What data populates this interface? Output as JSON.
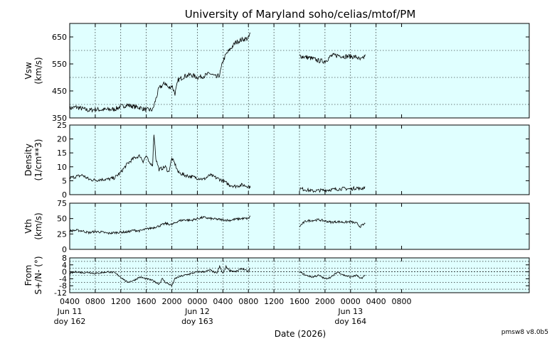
{
  "chart_data": {
    "type": "line",
    "title": "University of Maryland  soho/celias/mtof/PM",
    "xlabel": "Date (2026)",
    "footer": "pmsw8 v8.0b5",
    "x_range_hours": [
      4,
      76
    ],
    "x_ticks": [
      {
        "h": 4,
        "label": "0400",
        "sub": [
          "Jun 11",
          "doy 162"
        ]
      },
      {
        "h": 8,
        "label": "0800"
      },
      {
        "h": 12,
        "label": "1200"
      },
      {
        "h": 16,
        "label": "1600"
      },
      {
        "h": 20,
        "label": "2000"
      },
      {
        "h": 24,
        "label": "0000",
        "sub": [
          "Jun 12",
          "doy 163"
        ]
      },
      {
        "h": 28,
        "label": "0400"
      },
      {
        "h": 32,
        "label": "0800"
      },
      {
        "h": 36,
        "label": "1200"
      },
      {
        "h": 40,
        "label": "1600"
      },
      {
        "h": 44,
        "label": "2000"
      },
      {
        "h": 48,
        "label": "0000",
        "sub": [
          "Jun 13",
          "doy 164"
        ]
      },
      {
        "h": 52,
        "label": "0400"
      },
      {
        "h": 56,
        "label": "0800"
      }
    ],
    "panels": [
      {
        "key": "vsw",
        "ylabel": [
          "Vsw",
          "(km/s)"
        ],
        "ylim": [
          350,
          700
        ],
        "yticks": [
          350,
          450,
          550,
          650
        ],
        "hgrid": [
          400,
          500,
          600
        ],
        "segments": [
          [
            [
              4,
              385
            ],
            [
              5,
              390
            ],
            [
              6,
              384
            ],
            [
              7,
              378
            ],
            [
              8,
              382
            ],
            [
              9,
              380
            ],
            [
              10,
              381
            ],
            [
              11,
              382
            ],
            [
              12,
              392
            ],
            [
              13,
              398
            ],
            [
              14,
              392
            ],
            [
              15,
              388
            ],
            [
              16,
              380
            ],
            [
              17,
              380
            ],
            [
              17.5,
              420
            ],
            [
              18,
              460
            ],
            [
              19,
              480
            ],
            [
              19.5,
              460
            ],
            [
              20,
              470
            ],
            [
              20.5,
              440
            ],
            [
              21,
              490
            ],
            [
              22,
              505
            ],
            [
              23,
              510
            ],
            [
              24,
              500
            ],
            [
              25,
              505
            ],
            [
              26,
              515
            ],
            [
              27,
              500
            ],
            [
              27.5,
              510
            ],
            [
              28,
              560
            ],
            [
              28.5,
              585
            ],
            [
              29,
              600
            ],
            [
              30,
              630
            ],
            [
              31,
              640
            ],
            [
              32,
              645
            ],
            [
              32.3,
              665
            ]
          ],
          [
            [
              40,
              580
            ],
            [
              41,
              575
            ],
            [
              42,
              570
            ],
            [
              43,
              562
            ],
            [
              44,
              560
            ],
            [
              44.5,
              570
            ],
            [
              45,
              580
            ],
            [
              46,
              582
            ],
            [
              47,
              578
            ],
            [
              48,
              578
            ],
            [
              49,
              575
            ],
            [
              49.5,
              565
            ],
            [
              50,
              570
            ],
            [
              50.3,
              585
            ]
          ]
        ]
      },
      {
        "key": "density",
        "ylabel": [
          "Density",
          "(1/cm**3)"
        ],
        "ylim": [
          0,
          25
        ],
        "yticks": [
          0,
          5,
          10,
          15,
          20,
          25
        ],
        "hgrid": [],
        "segments": [
          [
            [
              4,
              6
            ],
            [
              5,
              6.5
            ],
            [
              6,
              7
            ],
            [
              7,
              5.5
            ],
            [
              8,
              5.2
            ],
            [
              9,
              5.5
            ],
            [
              10,
              5.5
            ],
            [
              11,
              6
            ],
            [
              12,
              8
            ],
            [
              13,
              11
            ],
            [
              14,
              13
            ],
            [
              15,
              14
            ],
            [
              15.5,
              12
            ],
            [
              16,
              14
            ],
            [
              16.5,
              11
            ],
            [
              17,
              11
            ],
            [
              17.2,
              22
            ],
            [
              17.5,
              13
            ],
            [
              18,
              9
            ],
            [
              19,
              10
            ],
            [
              19.5,
              8
            ],
            [
              20,
              13
            ],
            [
              20.5,
              11
            ],
            [
              21,
              8
            ],
            [
              22,
              7
            ],
            [
              23,
              6.5
            ],
            [
              24,
              6
            ],
            [
              25,
              5.5
            ],
            [
              26,
              7
            ],
            [
              27,
              6
            ],
            [
              28,
              5
            ],
            [
              29,
              3.5
            ],
            [
              30,
              3
            ],
            [
              31,
              3.5
            ],
            [
              32,
              3
            ],
            [
              32.3,
              2.5
            ]
          ],
          [
            [
              40,
              2.2
            ],
            [
              41,
              1.8
            ],
            [
              42,
              1.3
            ],
            [
              43,
              1.5
            ],
            [
              44,
              1.6
            ],
            [
              45,
              1.8
            ],
            [
              46,
              2
            ],
            [
              47,
              2.2
            ],
            [
              48,
              2
            ],
            [
              49,
              2.5
            ],
            [
              49.5,
              2
            ],
            [
              50,
              2.4
            ],
            [
              50.3,
              2.8
            ]
          ]
        ]
      },
      {
        "key": "vth",
        "ylabel": [
          "Vth",
          "(km/s)"
        ],
        "ylim": [
          0,
          75
        ],
        "yticks": [
          0,
          25,
          50,
          75
        ],
        "hgrid": [],
        "segments": [
          [
            [
              4,
              30
            ],
            [
              5,
              31
            ],
            [
              6,
              30
            ],
            [
              7,
              27
            ],
            [
              8,
              29
            ],
            [
              9,
              28
            ],
            [
              10,
              26
            ],
            [
              11,
              27
            ],
            [
              12,
              28
            ],
            [
              13,
              28
            ],
            [
              14,
              31
            ],
            [
              15,
              30
            ],
            [
              16,
              33
            ],
            [
              17,
              35
            ],
            [
              18,
              38
            ],
            [
              19,
              42
            ],
            [
              20,
              40
            ],
            [
              21,
              46
            ],
            [
              22,
              48
            ],
            [
              23,
              47
            ],
            [
              24,
              50
            ],
            [
              25,
              52
            ],
            [
              26,
              50
            ],
            [
              27,
              49
            ],
            [
              28,
              48
            ],
            [
              29,
              47
            ],
            [
              30,
              49
            ],
            [
              31,
              50
            ],
            [
              32,
              50
            ],
            [
              32.3,
              54
            ]
          ],
          [
            [
              40,
              37
            ],
            [
              40.5,
              42
            ],
            [
              41,
              46
            ],
            [
              42,
              47
            ],
            [
              43,
              48
            ],
            [
              44,
              46
            ],
            [
              45,
              44
            ],
            [
              46,
              45
            ],
            [
              47,
              44
            ],
            [
              48,
              45
            ],
            [
              49,
              42
            ],
            [
              49.5,
              37
            ],
            [
              50,
              40
            ],
            [
              50.3,
              42
            ]
          ]
        ]
      },
      {
        "key": "from",
        "ylabel": [
          "From",
          "S+/N- (°)"
        ],
        "ylim": [
          -12,
          8
        ],
        "yticks": [
          -12,
          -8,
          -4,
          0,
          4,
          8
        ],
        "hgrid": [
          -10,
          -6,
          -2,
          2,
          6
        ],
        "zero_line": true,
        "segments": [
          [
            [
              4,
              -1
            ],
            [
              5,
              0
            ],
            [
              6,
              -0.5
            ],
            [
              7,
              -0.3
            ],
            [
              8,
              -1
            ],
            [
              9,
              -0.5
            ],
            [
              10,
              0
            ],
            [
              11,
              -0.5
            ],
            [
              12,
              -3
            ],
            [
              13,
              -6
            ],
            [
              14,
              -5
            ],
            [
              15,
              -3
            ],
            [
              16,
              -4
            ],
            [
              17,
              -5
            ],
            [
              18,
              -7
            ],
            [
              18.5,
              -4
            ],
            [
              19,
              -6
            ],
            [
              20,
              -8
            ],
            [
              20.5,
              -4
            ],
            [
              21,
              -3
            ],
            [
              22,
              -2
            ],
            [
              23,
              -1
            ],
            [
              24,
              0
            ],
            [
              25,
              0
            ],
            [
              26,
              1
            ],
            [
              27,
              -1
            ],
            [
              27.5,
              3
            ],
            [
              28,
              -1
            ],
            [
              28.5,
              3
            ],
            [
              29,
              1
            ],
            [
              30,
              0
            ],
            [
              31,
              2
            ],
            [
              32,
              0
            ],
            [
              32.3,
              2
            ]
          ],
          [
            [
              40,
              0
            ],
            [
              41,
              -2
            ],
            [
              42,
              -3
            ],
            [
              43,
              -2
            ],
            [
              44,
              -4
            ],
            [
              45,
              -3
            ],
            [
              46,
              0
            ],
            [
              47,
              -2
            ],
            [
              48,
              -3
            ],
            [
              49,
              -2
            ],
            [
              49.5,
              -4
            ],
            [
              50,
              -3
            ],
            [
              50.3,
              -2
            ]
          ]
        ]
      }
    ]
  }
}
